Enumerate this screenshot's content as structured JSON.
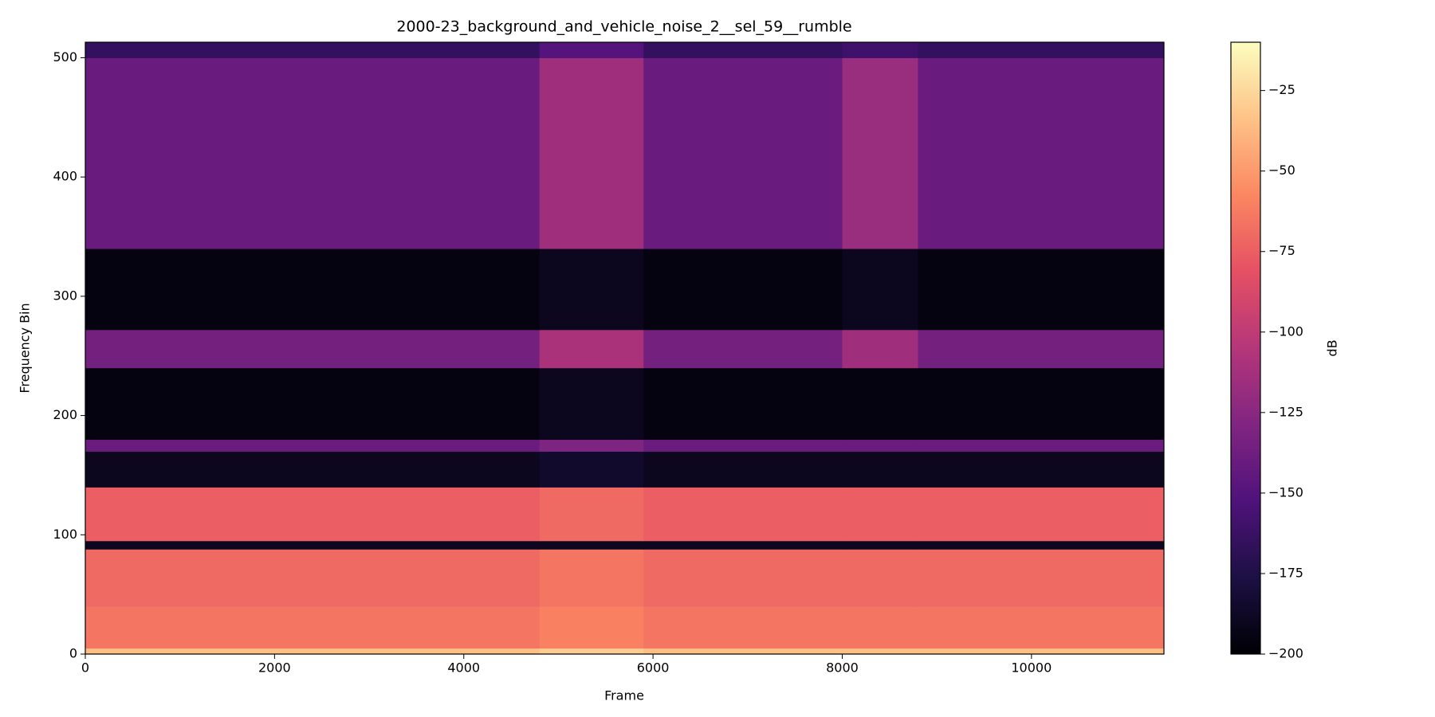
{
  "chart_data": {
    "type": "heatmap",
    "title": "2000-23_background_and_vehicle_noise_2__sel_59__rumble",
    "x_label": "Frame",
    "y_label": "Frequency Bin",
    "colorbar_label": "dB",
    "colormap": "magma",
    "x_edges": [
      0,
      4800,
      5900,
      8000,
      8800,
      11400
    ],
    "y_edges": [
      0,
      5,
      40,
      88,
      95,
      140,
      170,
      180,
      240,
      272,
      340,
      500,
      513
    ],
    "values": [
      [
        -35,
        -30,
        -35,
        -35,
        -35
      ],
      [
        -65,
        -60,
        -65,
        -65,
        -65
      ],
      [
        -70,
        -65,
        -70,
        -70,
        -70
      ],
      [
        -190,
        -190,
        -190,
        -190,
        -190
      ],
      [
        -75,
        -70,
        -75,
        -75,
        -75
      ],
      [
        -190,
        -185,
        -190,
        -190,
        -190
      ],
      [
        -140,
        -130,
        -140,
        -140,
        -140
      ],
      [
        -195,
        -190,
        -195,
        -195,
        -195
      ],
      [
        -135,
        -110,
        -135,
        -115,
        -135
      ],
      [
        -195,
        -190,
        -195,
        -190,
        -195
      ],
      [
        -140,
        -115,
        -140,
        -118,
        -140
      ],
      [
        -165,
        -150,
        -165,
        -160,
        -165
      ]
    ],
    "xlim": [
      0,
      11400
    ],
    "xticks": [
      0,
      2000,
      4000,
      6000,
      8000,
      10000
    ],
    "ylim": [
      0,
      513
    ],
    "yticks": [
      0,
      100,
      200,
      300,
      400,
      500
    ],
    "clim": [
      -200,
      -10
    ],
    "cticks": [
      {
        "value": -25,
        "label": "−25"
      },
      {
        "value": -50,
        "label": "−50"
      },
      {
        "value": -75,
        "label": "−75"
      },
      {
        "value": -100,
        "label": "−100"
      },
      {
        "value": -125,
        "label": "−125"
      },
      {
        "value": -150,
        "label": "−150"
      },
      {
        "value": -175,
        "label": "−175"
      },
      {
        "value": -200,
        "label": "−200"
      }
    ]
  }
}
